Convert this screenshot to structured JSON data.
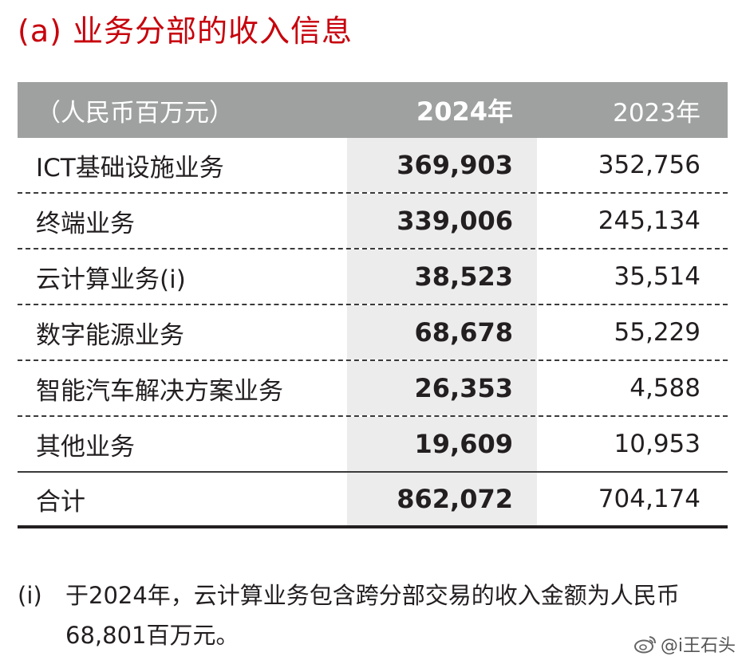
{
  "title": "(a) 业务分部的收入信息",
  "table": {
    "header": {
      "unit": "（人民币百万元）",
      "col_2024": "2024年",
      "col_2023": "2023年"
    },
    "rows": [
      {
        "label": "ICT基础设施业务",
        "v2024": "369,903",
        "v2023": "352,756"
      },
      {
        "label": "终端业务",
        "v2024": "339,006",
        "v2023": "245,134"
      },
      {
        "label": "云计算业务(i)",
        "v2024": "38,523",
        "v2023": "35,514"
      },
      {
        "label": "数字能源业务",
        "v2024": "68,678",
        "v2023": "55,229"
      },
      {
        "label": "智能汽车解决方案业务",
        "v2024": "26,353",
        "v2023": "4,588"
      },
      {
        "label": "其他业务",
        "v2024": "19,609",
        "v2023": "10,953"
      }
    ],
    "total": {
      "label": "合计",
      "v2024": "862,072",
      "v2023": "704,174"
    }
  },
  "note": {
    "marker": "(i)",
    "text": "于2024年，云计算业务包含跨分部交易的收入金额为人民币68,801百万元。"
  },
  "watermark": {
    "text": "@i王石头",
    "icon": "weibo-icon"
  }
}
